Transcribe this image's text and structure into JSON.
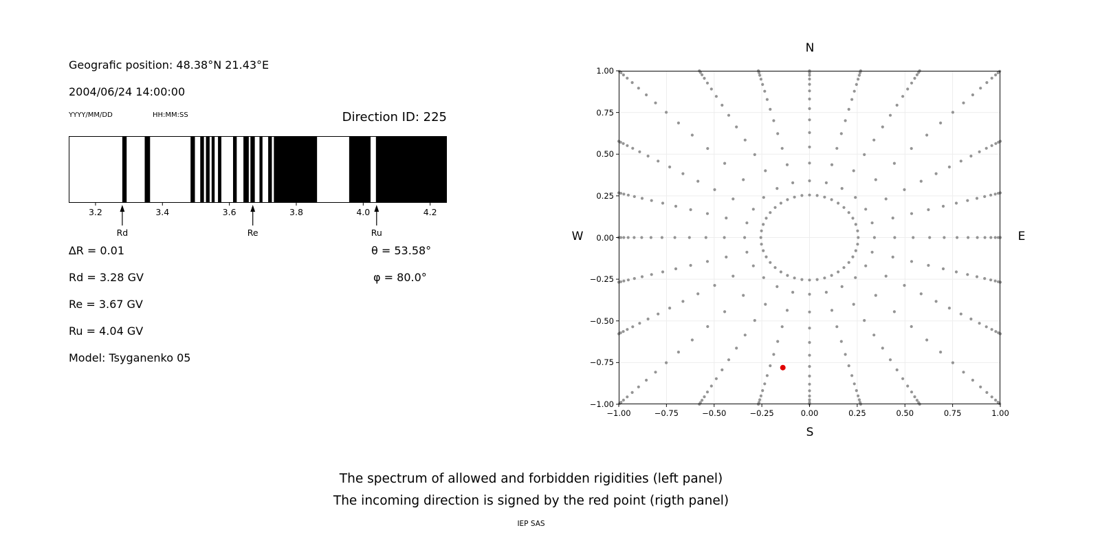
{
  "header": {
    "position": "Geografic position: 48.38°N 21.43°E",
    "datetime": "2004/06/24 14:00:00",
    "date_format_label": "YYYY/MM/DD",
    "time_format_label": "HH:MM:SS",
    "direction_id_label": "Direction ID: 225"
  },
  "info": {
    "delta_r": "∆R = 0.01",
    "rd": "Rd = 3.28 GV",
    "re": "Re = 3.67 GV",
    "ru": "Ru = 4.04 GV",
    "model": "Model: Tsyganenko 05",
    "theta": "θ = 53.58°",
    "phi": "φ = 80.0°"
  },
  "caption": {
    "line1": "The spectrum of allowed and forbidden rigidities (left panel)",
    "line2": "The incoming direction is signed by the red point (rigth panel)",
    "credit": "IEP SAS"
  },
  "chart_data": [
    {
      "type": "bar",
      "name": "rigidity-spectrum",
      "xlim": [
        3.12,
        4.25
      ],
      "xticks": [
        3.2,
        3.4,
        3.6,
        3.8,
        4.0,
        4.2
      ],
      "band_color": "#000000",
      "bands": [
        [
          3.28,
          3.293
        ],
        [
          3.347,
          3.363
        ],
        [
          3.484,
          3.497
        ],
        [
          3.513,
          3.524
        ],
        [
          3.53,
          3.541
        ],
        [
          3.547,
          3.556
        ],
        [
          3.566,
          3.576
        ],
        [
          3.611,
          3.622
        ],
        [
          3.642,
          3.658
        ],
        [
          3.663,
          3.676
        ],
        [
          3.69,
          3.699
        ],
        [
          3.716,
          3.727
        ],
        [
          3.733,
          3.862
        ],
        [
          3.958,
          4.022
        ],
        [
          4.038,
          4.25
        ]
      ],
      "markers": [
        {
          "label": "Rd",
          "x": 3.28
        },
        {
          "label": "Re",
          "x": 3.67
        },
        {
          "label": "Ru",
          "x": 4.04
        }
      ]
    },
    {
      "type": "scatter",
      "name": "incoming-direction-map",
      "xlim": [
        -1.0,
        1.0
      ],
      "ylim": [
        -1.0,
        1.0
      ],
      "xticks": [
        -1.0,
        -0.75,
        -0.5,
        -0.25,
        0.0,
        0.25,
        0.5,
        0.75,
        1.0
      ],
      "yticks": [
        1.0,
        0.75,
        0.5,
        0.25,
        0.0,
        -0.25,
        -0.5,
        -0.75,
        -1.0
      ],
      "grid": true,
      "grid_color": "#ededed",
      "compass": {
        "north": "N",
        "south": "S",
        "east": "E",
        "west": "W"
      },
      "dot_color": "#949494",
      "ring": {
        "radius": 0.255,
        "dots": 40
      },
      "spokes": {
        "count": 24,
        "r_start": 0.34,
        "max_radius": 1.41,
        "cluster_exponent": 2.2
      },
      "red_point": {
        "x": -0.14,
        "y": -0.78,
        "color": "#e00000"
      }
    }
  ]
}
